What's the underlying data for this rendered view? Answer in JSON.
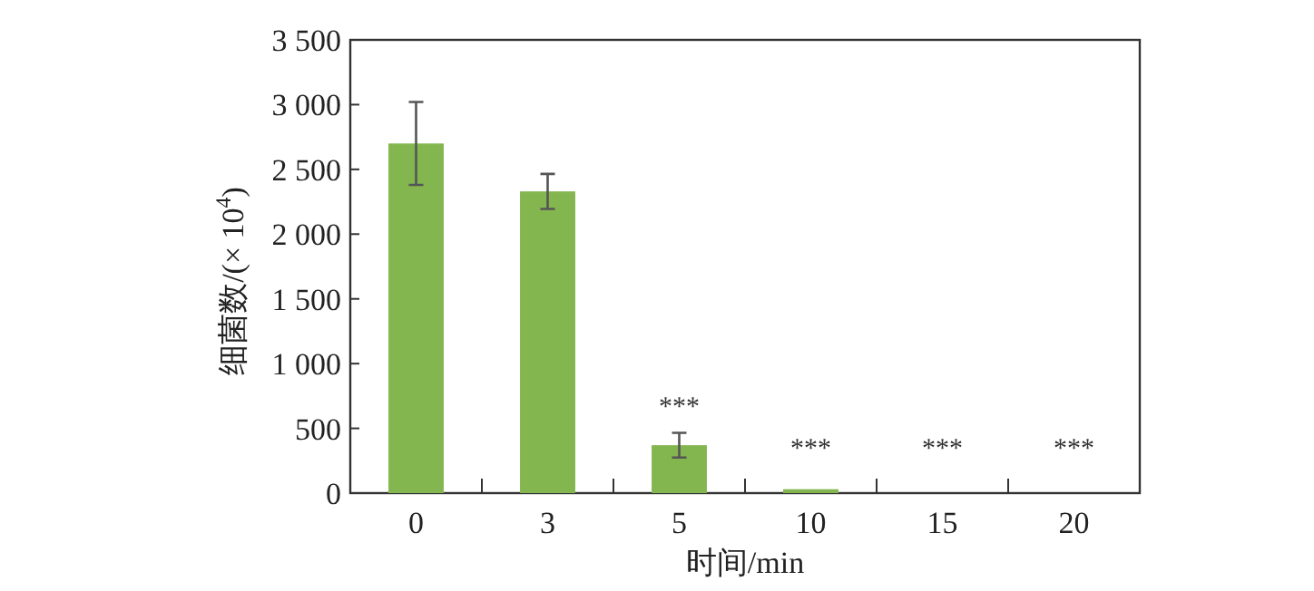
{
  "chart_data": {
    "type": "bar",
    "xlabel": "时间/min",
    "ylabel": "细菌数/(× 10$^{4}$)",
    "categories": [
      "0",
      "3",
      "5",
      "10",
      "15",
      "20"
    ],
    "values": [
      2700,
      2330,
      370,
      30,
      0,
      0
    ],
    "errors": [
      320,
      135,
      95,
      null,
      null,
      null
    ],
    "color": "#84b650",
    "ylim": [
      0,
      3500
    ],
    "yticks": [
      0,
      500,
      {
        "value": 1000,
        "label": "1 000"
      },
      {
        "value": 1500,
        "label": "1 500"
      },
      {
        "value": 2000,
        "label": "2 000"
      },
      {
        "value": 2500,
        "label": "2 500"
      },
      {
        "value": 3000,
        "label": "3 000"
      },
      {
        "value": 3500,
        "label": "3 500"
      }
    ],
    "annotations": [
      "***",
      "***",
      "***",
      "***"
    ]
  }
}
